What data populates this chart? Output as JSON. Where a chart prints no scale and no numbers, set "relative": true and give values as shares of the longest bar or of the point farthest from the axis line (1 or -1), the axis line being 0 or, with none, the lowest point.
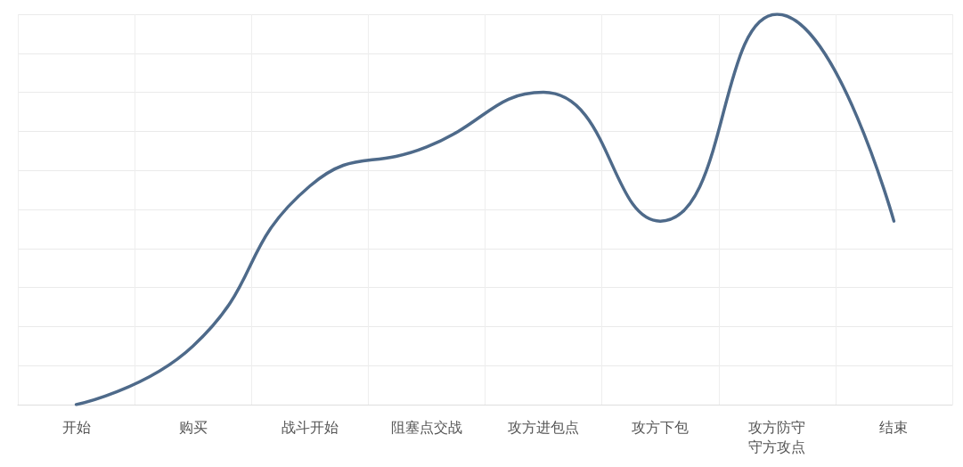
{
  "chart_data": {
    "type": "line",
    "relative": true,
    "categories": [
      "开始",
      "购买",
      "战斗开始",
      "阻塞点交战",
      "攻方进包点",
      "攻方下包",
      "攻方防守守方攻点",
      "结束"
    ],
    "series": [
      {
        "color": "#4e6a8a",
        "values": [
          0,
          0.15,
          0.56,
          0.66,
          0.8,
          0.47,
          1,
          0.47
        ]
      }
    ],
    "grid": true,
    "marker": "none",
    "line_style": "solid"
  }
}
